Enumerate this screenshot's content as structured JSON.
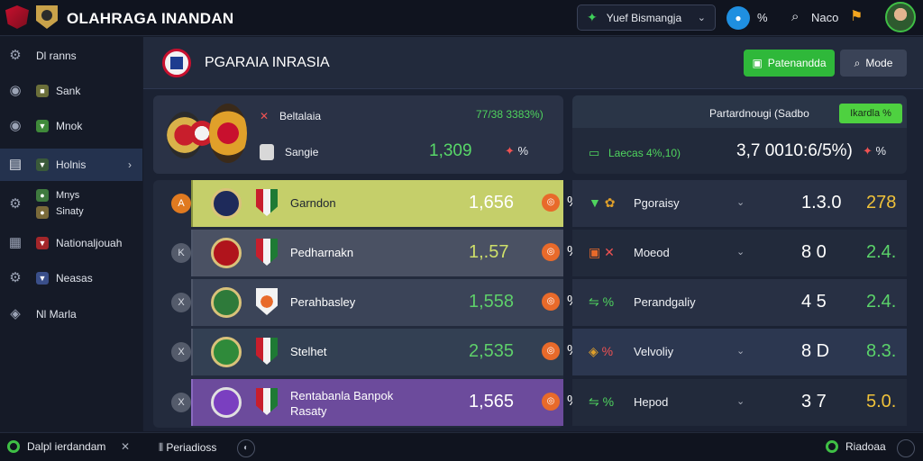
{
  "app": {
    "title": "OLAHRAGA INANDAN"
  },
  "topbar": {
    "select_label": "Yuef Bismangja",
    "pct_label": "%",
    "search_label": "Naco"
  },
  "sidebar": {
    "items": [
      {
        "label": "Dl ranns"
      },
      {
        "label": "Sank"
      },
      {
        "label": "Mnok"
      },
      {
        "label": "Holnis"
      },
      {
        "label": "Mnys",
        "sub": "Sinaty"
      },
      {
        "label": "Nationaljouah"
      },
      {
        "label": "Neasas"
      },
      {
        "label": "Nl Marla"
      }
    ]
  },
  "header": {
    "title": "PGARAIA INRASIA",
    "primary_button": "Patenandda",
    "secondary_button": "Mode"
  },
  "top_left_card": {
    "team1": "Beltalaia",
    "team2": "Sangie",
    "odds": "77/38 3383%)",
    "value": "1,309",
    "pct": "%"
  },
  "top_right_card": {
    "title": "Partardnougi (Sadbo",
    "badge": "Ikardla %",
    "label": "Laecas 4%,10)",
    "value": "3,7 0010:6/5%)",
    "pct": "%"
  },
  "rows": [
    {
      "rank": "A",
      "name": "Garndon",
      "value": "1,656",
      "pct": "%"
    },
    {
      "rank": "K",
      "name": "Pedharnakn",
      "value": "1,.57",
      "pct": "%"
    },
    {
      "rank": "X",
      "name": "Perahbasley",
      "value": "1,558",
      "pct": "%"
    },
    {
      "rank": "X",
      "name": "Stelhet",
      "value": "2,535",
      "pct": "%"
    },
    {
      "rank": "X",
      "name": "Rentabanla Banpok Rasaty",
      "value": "1,565",
      "pct": "%"
    }
  ],
  "right_rows": [
    {
      "name": "Pgoraisy",
      "n1": "1.3.0",
      "n2": "278"
    },
    {
      "name": "Moeod",
      "n1": "8 0",
      "n2": "2.4."
    },
    {
      "name": "Perandgaliy",
      "n1": "4 5",
      "n2": "2.4."
    },
    {
      "name": "Velvoliy",
      "n1": "8 D",
      "n2": "8.3."
    },
    {
      "name": "Hepod",
      "n1": "3 7",
      "n2": "5.0."
    }
  ],
  "footer": {
    "left": "Dalpl ierdandam",
    "middle": "Periadioss",
    "right": "Riadoaa"
  },
  "colors": {
    "accent_green": "#2fb83a",
    "value_green": "#58d868",
    "warn_red": "#f05252",
    "highlight_row": "#c5cf6a",
    "purple_row": "#6c4b9c"
  }
}
